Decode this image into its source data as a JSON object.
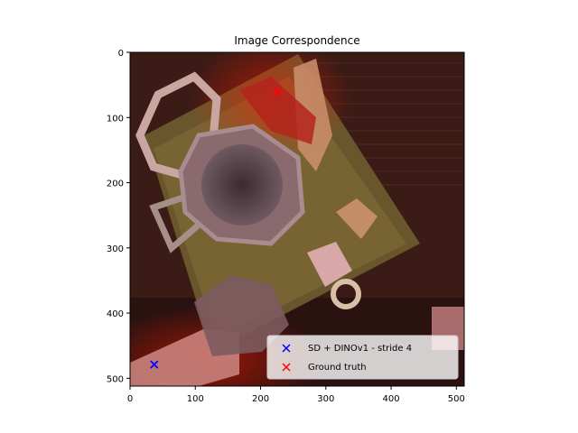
{
  "chart_data": {
    "type": "scatter",
    "title": "Image Correspondence",
    "xlabel": "",
    "ylabel": "",
    "xlim": [
      0,
      512
    ],
    "ylim": [
      512,
      0
    ],
    "x_ticks": [
      0,
      100,
      200,
      300,
      400,
      500
    ],
    "y_ticks": [
      0,
      100,
      200,
      300,
      400,
      500
    ],
    "background": "photo of a wooden table with a mug, glasses and objects, overlaid with a red heatmap",
    "series": [
      {
        "name": "SD + DINOv1 - stride 4",
        "marker": "x",
        "color": "#0000ff",
        "points": [
          [
            37,
            479
          ]
        ]
      },
      {
        "name": "Ground truth",
        "marker": "x",
        "color": "#ff0000",
        "points": [
          [
            226,
            60
          ]
        ]
      }
    ],
    "legend": {
      "placement": "lower-right"
    },
    "grid": false
  }
}
